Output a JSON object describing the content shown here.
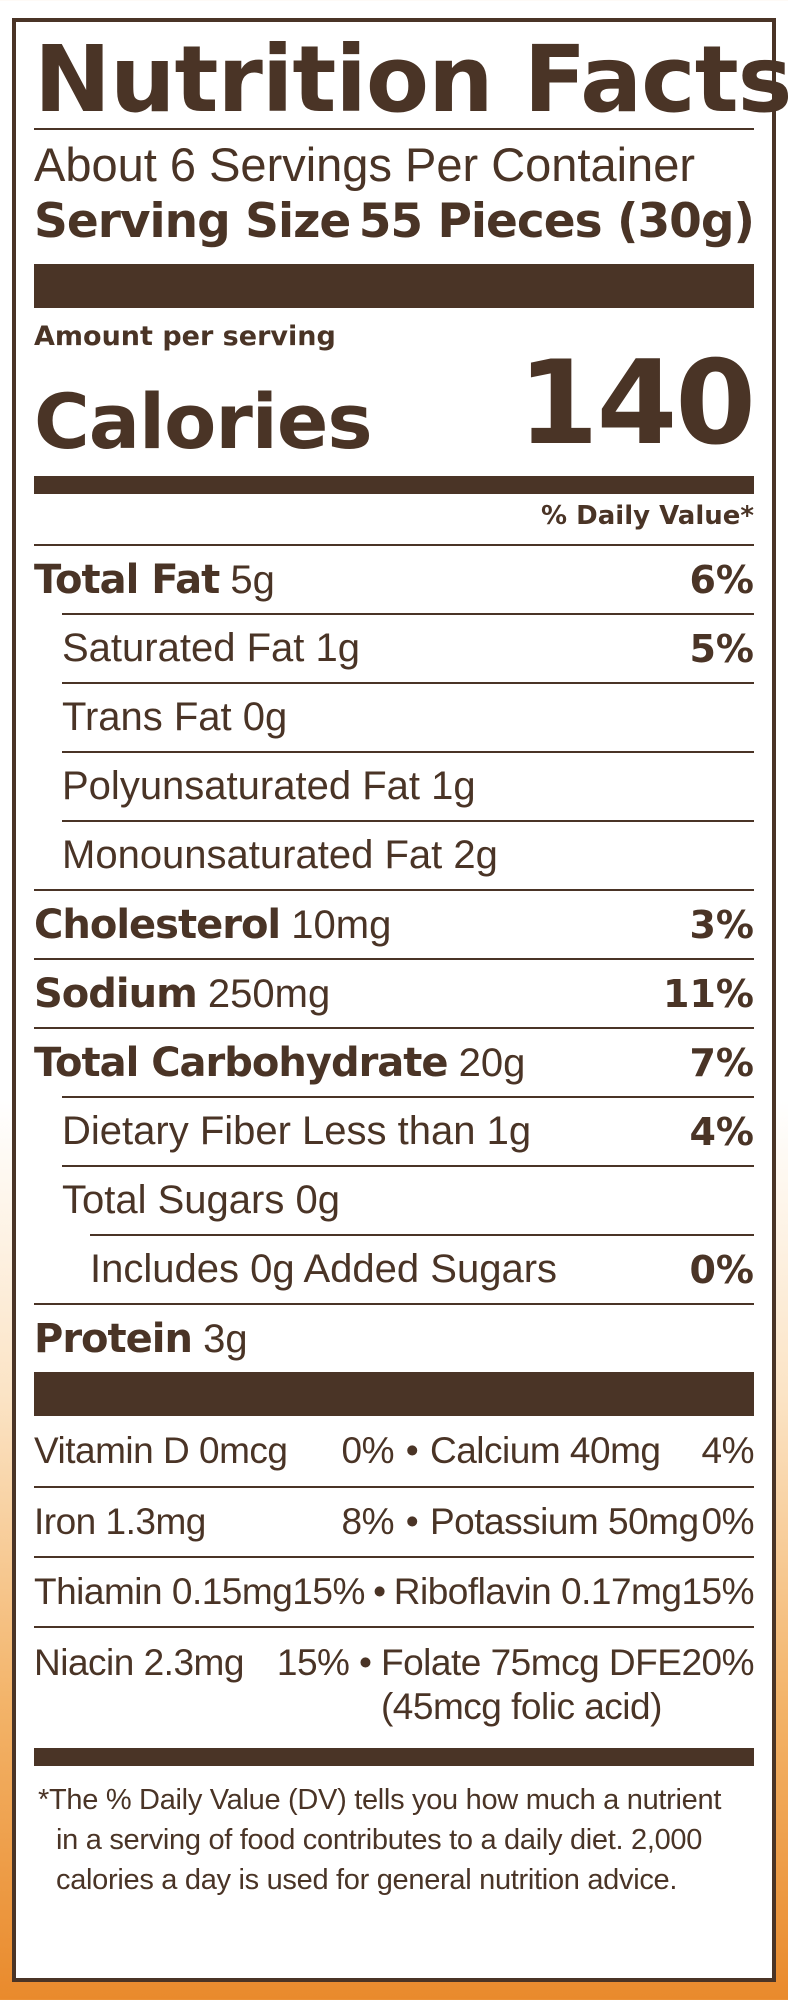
{
  "title": "Nutrition Facts",
  "servings_per_container": "About 6 Servings Per Container",
  "serving_size": {
    "label": "Serving Size",
    "value": "55 Pieces (30g)"
  },
  "amount_per_serving": "Amount per serving",
  "calories": {
    "label": "Calories",
    "value": "140"
  },
  "daily_value_header": "% Daily Value*",
  "nutrients": [
    {
      "name": "Total Fat",
      "amount": "5g",
      "dv": "6%"
    },
    {
      "name": "Saturated Fat 1g",
      "dv": "5%"
    },
    {
      "name": "Trans Fat 0g",
      "dv": ""
    },
    {
      "name": "Polyunsaturated Fat 1g",
      "dv": ""
    },
    {
      "name": "Monounsaturated Fat 2g",
      "dv": ""
    },
    {
      "name": "Cholesterol",
      "amount": "10mg",
      "dv": "3%"
    },
    {
      "name": "Sodium",
      "amount": "250mg",
      "dv": "11%"
    },
    {
      "name": "Total Carbohydrate",
      "amount": "20g",
      "dv": "7%"
    },
    {
      "name": "Dietary Fiber Less than 1g",
      "dv": "4%"
    },
    {
      "name": "Total Sugars 0g",
      "dv": ""
    },
    {
      "name": "Includes 0g Added Sugars",
      "dv": "0%"
    },
    {
      "name": "Protein",
      "amount": "3g",
      "dv": ""
    }
  ],
  "vitamins": [
    {
      "left_name": "Vitamin D 0mcg",
      "left_dv": "0%",
      "bullet": "•",
      "right_name": "Calcium 40mg",
      "right_dv": "4%"
    },
    {
      "left_name": "Iron 1.3mg",
      "left_dv": "8%",
      "bullet": "•",
      "right_name": "Potassium 50mg",
      "right_dv": "0%"
    },
    {
      "left_name": "Thiamin 0.15mg",
      "left_dv": "15%",
      "bullet": "•",
      "right_name": "Riboflavin 0.17mg",
      "right_dv": "15%"
    },
    {
      "left_name": "Niacin 2.3mg",
      "left_dv": "15%",
      "bullet": "•",
      "right_name": "Folate 75mcg DFE",
      "right_dv": "20%",
      "right_sub": "(45mcg folic acid)"
    }
  ],
  "footnote": {
    "line1": "*The % Daily Value (DV) tells you how much a nutrient",
    "line2": "in a serving of food contributes to a daily diet. 2,000",
    "line3": "calories a day is used for general nutrition advice."
  },
  "colors": {
    "ink": "#4a3426",
    "background": "#ffffff"
  }
}
